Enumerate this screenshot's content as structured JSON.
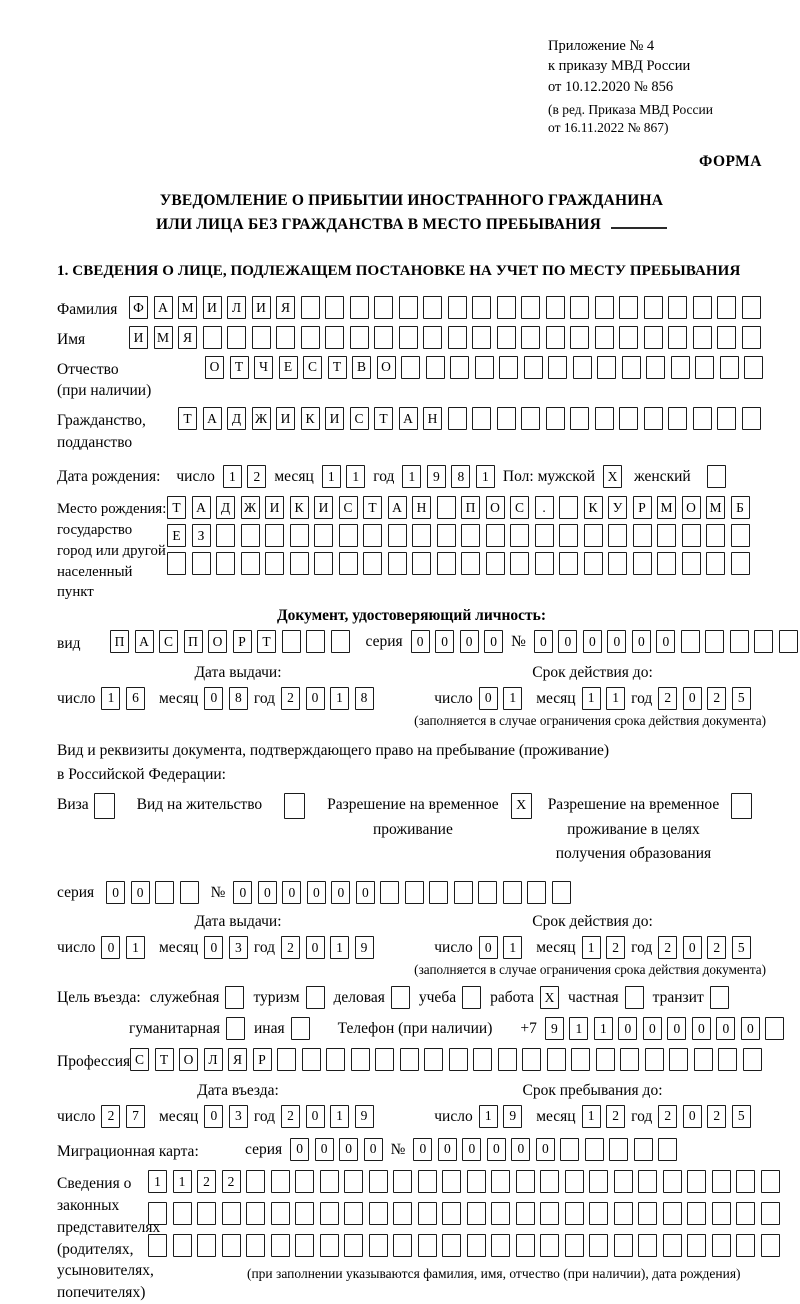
{
  "meta": {
    "appendix_lines": [
      "Приложение № 4",
      "к приказу МВД России",
      "от 10.12.2020 № 856"
    ],
    "revision_lines": [
      "(в ред. Приказа МВД России",
      "от 16.11.2022 № 867)"
    ],
    "form_label": "ФОРМА"
  },
  "title": {
    "line1": "УВЕДОМЛЕНИЕ О ПРИБЫТИИ ИНОСТРАННОГО ГРАЖДАНИНА",
    "line2": "ИЛИ ЛИЦА БЕЗ ГРАЖДАНСТВА В МЕСТО ПРЕБЫВАНИЯ"
  },
  "section1_heading": "1. СВЕДЕНИЯ О ЛИЦЕ, ПОДЛЕЖАЩЕМ ПОСТАНОВКЕ НА УЧЕТ ПО МЕСТУ ПРЕБЫВАНИЯ",
  "labels": {
    "surname": "Фамилия",
    "given_name": "Имя",
    "patronymic": [
      "Отчество",
      "(при наличии)"
    ],
    "citizenship": [
      "Гражданство,",
      "подданство"
    ],
    "birth_date": "Дата рождения:",
    "day": "число",
    "month": "месяц",
    "year": "год",
    "sex_male": "Пол: мужской",
    "sex_female": "женский",
    "birth_place": [
      "Место рождения:",
      "государство",
      "город или другой",
      "населенный пункт"
    ],
    "id_doc_heading": "Документ, удостоверяющий личность:",
    "doc_kind": "вид",
    "series": "серия",
    "number": "№",
    "issue_date": "Дата выдачи:",
    "valid_until": "Срок действия до:",
    "validity_note": "(заполняется в случае ограничения срока действия документа)",
    "residence_doc_intro": [
      "Вид и реквизиты документа, подтверждающего право на пребывание (проживание)",
      "в Российской Федерации:"
    ],
    "visa": "Виза",
    "residence_permit": "Вид на жительство",
    "temp_residence": [
      "Разрешение на временное",
      "проживание"
    ],
    "temp_residence_edu": [
      "Разрешение на временное",
      "проживание в целях",
      "получения образования"
    ],
    "visit_purpose": "Цель въезда:",
    "purpose_business": "служебная",
    "purpose_tourism": "туризм",
    "purpose_commercial": "деловая",
    "purpose_study": "учеба",
    "purpose_work": "работа",
    "purpose_private": "частная",
    "purpose_transit": "транзит",
    "purpose_humanitarian": "гуманитарная",
    "purpose_other": "иная",
    "phone": "Телефон (при наличии)",
    "phone_prefix": "+7",
    "profession": "Профессия",
    "entry_date": "Дата въезда:",
    "stay_until": "Срок пребывания до:",
    "migration_card": "Миграционная карта:",
    "legal_reps": [
      "Сведения о",
      "законных",
      "представителях",
      "(родителях,",
      "усыновителях,",
      "попечителях)"
    ],
    "legal_reps_note": "(при заполнении указываются фамилия, имя, отчество (при наличии), дата рождения)"
  },
  "fields": {
    "surname": {
      "len": 26,
      "value": "ФАМИЛИЯ"
    },
    "given_name": {
      "len": 26,
      "value": "ИМЯ"
    },
    "patronymic": {
      "len": 23,
      "value": "ОТЧЕСТВО"
    },
    "citizenship": {
      "len": 24,
      "value": "ТАДЖИКИСТАН"
    },
    "birth_day": {
      "len": 2,
      "value": "12"
    },
    "birth_month": {
      "len": 2,
      "value": "11"
    },
    "birth_year": {
      "len": 4,
      "value": "1981"
    },
    "sex_male_box": {
      "len": 1,
      "value": "X"
    },
    "sex_female_box": {
      "len": 1,
      "value": ""
    },
    "birth_place_row1": {
      "len": 24,
      "value": "ТАДЖИКИСТАН ПОС. КУРМОМБ"
    },
    "birth_place_row2": {
      "len": 24,
      "value": "ЕЗ"
    },
    "birth_place_row3": {
      "len": 24,
      "value": ""
    },
    "id_kind": {
      "len": 10,
      "value": "ПАСПОРТ"
    },
    "id_series": {
      "len": 4,
      "value": "0000"
    },
    "id_number": {
      "len": 11,
      "value": "000000"
    },
    "id_issue_day": {
      "len": 2,
      "value": "16"
    },
    "id_issue_month": {
      "len": 2,
      "value": "08"
    },
    "id_issue_year": {
      "len": 4,
      "value": "2018"
    },
    "id_valid_day": {
      "len": 2,
      "value": "01"
    },
    "id_valid_month": {
      "len": 2,
      "value": "11"
    },
    "id_valid_year": {
      "len": 4,
      "value": "2025"
    },
    "visa_box": {
      "len": 1,
      "value": ""
    },
    "residence_permit_box": {
      "len": 1,
      "value": ""
    },
    "temp_residence_box": {
      "len": 1,
      "value": "X"
    },
    "temp_residence_edu_box": {
      "len": 1,
      "value": ""
    },
    "res_series": {
      "len": 4,
      "value": "00"
    },
    "res_number": {
      "len": 14,
      "value": "000000"
    },
    "res_issue_day": {
      "len": 2,
      "value": "01"
    },
    "res_issue_month": {
      "len": 2,
      "value": "03"
    },
    "res_issue_year": {
      "len": 4,
      "value": "2019"
    },
    "res_valid_day": {
      "len": 2,
      "value": "01"
    },
    "res_valid_month": {
      "len": 2,
      "value": "12"
    },
    "res_valid_year": {
      "len": 4,
      "value": "2025"
    },
    "purpose_business_box": {
      "len": 1,
      "value": ""
    },
    "purpose_tourism_box": {
      "len": 1,
      "value": ""
    },
    "purpose_commercial_box": {
      "len": 1,
      "value": ""
    },
    "purpose_study_box": {
      "len": 1,
      "value": ""
    },
    "purpose_work_box": {
      "len": 1,
      "value": "X"
    },
    "purpose_private_box": {
      "len": 1,
      "value": ""
    },
    "purpose_transit_box": {
      "len": 1,
      "value": ""
    },
    "purpose_humanitarian_box": {
      "len": 1,
      "value": ""
    },
    "purpose_other_box": {
      "len": 1,
      "value": ""
    },
    "phone_number": {
      "len": 10,
      "value": "911000000"
    },
    "profession": {
      "len": 26,
      "value": "СТОЛЯР"
    },
    "entry_day": {
      "len": 2,
      "value": "27"
    },
    "entry_month": {
      "len": 2,
      "value": "03"
    },
    "entry_year": {
      "len": 4,
      "value": "2019"
    },
    "stay_day": {
      "len": 2,
      "value": "19"
    },
    "stay_month": {
      "len": 2,
      "value": "12"
    },
    "stay_year": {
      "len": 4,
      "value": "2025"
    },
    "mig_series": {
      "len": 4,
      "value": "0000"
    },
    "mig_number": {
      "len": 11,
      "value": "000000"
    },
    "legal_rep_row1": {
      "len": 26,
      "value": "1122"
    },
    "legal_rep_row2": {
      "len": 26,
      "value": ""
    },
    "legal_rep_row3": {
      "len": 26,
      "value": ""
    }
  },
  "colors": {
    "ink": "#000000",
    "box_border": "#1b1b1b",
    "background": "#ffffff"
  }
}
